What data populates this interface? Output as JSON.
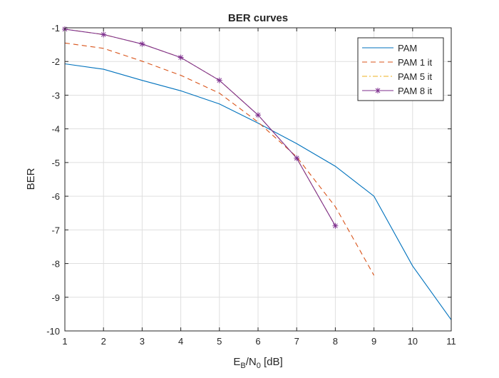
{
  "chart_data": {
    "type": "line",
    "title": "BER curves",
    "ylabel": "BER",
    "xlabel": {
      "parts": [
        {
          "text": "E",
          "sub": false
        },
        {
          "text": "B",
          "sub": true
        },
        {
          "text": "/N",
          "sub": false
        },
        {
          "text": "0",
          "sub": true
        },
        {
          "text": " [dB]",
          "sub": false
        }
      ]
    },
    "xlim": [
      1,
      11
    ],
    "ylim": [
      -10,
      -1
    ],
    "xticks": [
      1,
      2,
      3,
      4,
      5,
      6,
      7,
      8,
      9,
      10,
      11
    ],
    "yticks": [
      -1,
      -2,
      -3,
      -4,
      -5,
      -6,
      -7,
      -8,
      -9,
      -10
    ],
    "grid": true,
    "legend_position": "top-right",
    "series": [
      {
        "name": "PAM",
        "color": "#0072BD",
        "dash": "solid",
        "marker": "none",
        "x": [
          1,
          2,
          3,
          4,
          5,
          6,
          7,
          8,
          9,
          10,
          11
        ],
        "y": [
          -2.07,
          -2.23,
          -2.56,
          -2.87,
          -3.26,
          -3.83,
          -4.44,
          -5.11,
          -6.0,
          -8.07,
          -9.67
        ]
      },
      {
        "name": "PAM 1 it",
        "color": "#D95319",
        "dash": "dashed",
        "marker": "none",
        "x": [
          1,
          2,
          3,
          4,
          5,
          6,
          7,
          8,
          9
        ],
        "y": [
          -1.45,
          -1.61,
          -1.99,
          -2.41,
          -2.94,
          -3.8,
          -4.83,
          -6.31,
          -8.35
        ]
      },
      {
        "name": "PAM 5 it",
        "color": "#EDB120",
        "dash": "dashdot",
        "marker": "none",
        "x": [
          1,
          2,
          3,
          4,
          5,
          6,
          7,
          8
        ],
        "y": [
          -1.04,
          -1.2,
          -1.48,
          -1.88,
          -2.56,
          -3.59,
          -4.87,
          -6.88
        ]
      },
      {
        "name": "PAM 8 it",
        "color": "#7E2F8E",
        "dash": "solid",
        "marker": "asterisk",
        "x": [
          1,
          2,
          3,
          4,
          5,
          6,
          7,
          8
        ],
        "y": [
          -1.04,
          -1.2,
          -1.48,
          -1.88,
          -2.56,
          -3.59,
          -4.87,
          -6.88
        ]
      }
    ]
  }
}
